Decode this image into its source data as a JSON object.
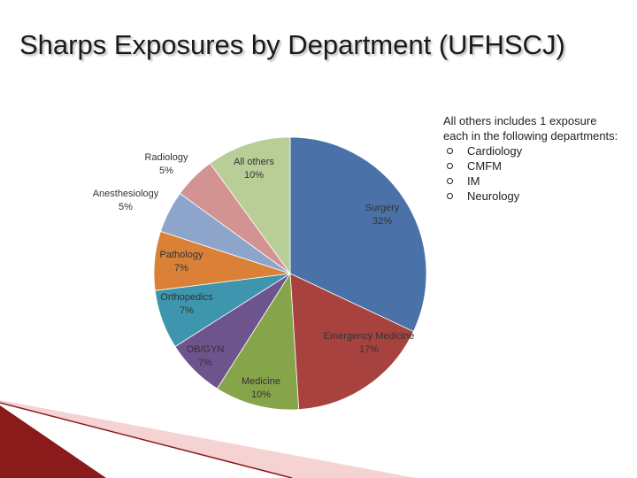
{
  "chart_data": {
    "type": "pie",
    "title": "Sharps Exposures by Department (UFHSCJ)",
    "categories": [
      "Surgery",
      "Emergency Medicine",
      "Medicine",
      "OB/GYN",
      "Orthopedics",
      "Pathology",
      "Anesthesiology",
      "Radiology",
      "All others"
    ],
    "values": [
      32,
      17,
      10,
      7,
      7,
      7,
      5,
      5,
      10
    ],
    "value_labels": [
      "32%",
      "17%",
      "10%",
      "7%",
      "7%",
      "7%",
      "5%",
      "5%",
      "10%"
    ],
    "colors": [
      "#4a72a8",
      "#a8423f",
      "#86a44a",
      "#6e548d",
      "#3d96ae",
      "#da8137",
      "#8ea5cb",
      "#d39392",
      "#b9cd96"
    ],
    "note": {
      "text": "All others includes 1 exposure each in the following departments:",
      "items": [
        "Cardiology",
        "CMFM",
        "IM",
        "Neurology"
      ]
    }
  }
}
